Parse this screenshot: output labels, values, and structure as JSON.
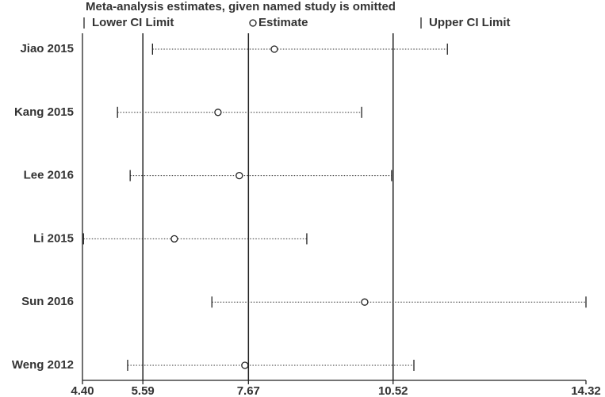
{
  "chart_data": {
    "type": "forest",
    "title": "Meta-analysis estimates, given named study is omitted",
    "categories": [
      "Jiao 2015",
      "Kang 2015",
      "Lee 2016",
      "Li 2015",
      "Sun 2016",
      "Weng 2012"
    ],
    "series": [
      {
        "name": "Lower CI Limit",
        "color": "#222222",
        "values": [
          5.78,
          5.09,
          5.34,
          4.42,
          6.95,
          5.29
        ]
      },
      {
        "name": "Estimate",
        "color": "#222222",
        "values": [
          8.18,
          7.07,
          7.49,
          6.21,
          9.96,
          7.6
        ]
      },
      {
        "name": "Upper CI Limit",
        "color": "#222222",
        "values": [
          11.59,
          9.9,
          10.49,
          8.82,
          14.32,
          10.93
        ]
      }
    ],
    "overall": {
      "lower": 5.59,
      "estimate": 7.67,
      "upper": 10.52
    },
    "xlim": [
      4.4,
      14.32
    ],
    "xticks": [
      {
        "value": 4.4,
        "label": "4.40"
      },
      5.59,
      7.67,
      10.52,
      14.32
    ]
  }
}
